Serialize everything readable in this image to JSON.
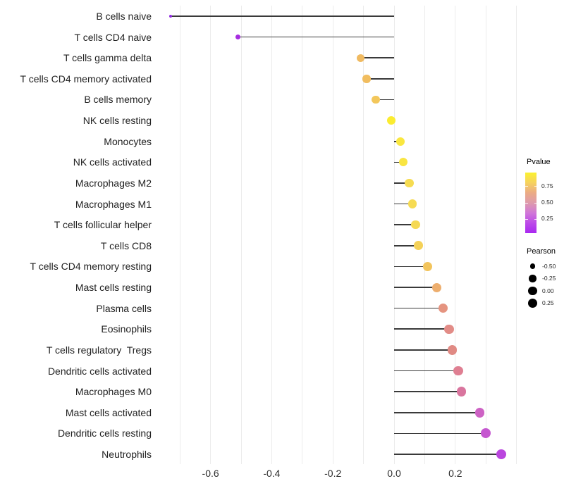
{
  "chart_data": {
    "type": "scatter",
    "subtype": "lollipop",
    "orientation": "horizontal",
    "title": "",
    "xlabel": "",
    "ylabel": "",
    "grid": true,
    "legend_position": "right",
    "x_axis": {
      "range": [
        -0.75,
        0.41
      ],
      "tick_values": [
        -0.6,
        -0.4,
        -0.2,
        0.0,
        0.2
      ],
      "tick_labels": [
        "-0.6",
        "-0.4",
        "-0.2",
        "0.0",
        "0.2"
      ],
      "gridline_values": [
        -0.7,
        -0.6,
        -0.5,
        -0.4,
        -0.3,
        -0.2,
        -0.1,
        0.0,
        0.1,
        0.2,
        0.3,
        0.4
      ]
    },
    "points": [
      {
        "category": "B cells naive",
        "pearson": -0.73,
        "color": "#8F29DF"
      },
      {
        "category": "T cells CD4 naive",
        "pearson": -0.51,
        "color": "#A62DE0"
      },
      {
        "category": "T cells gamma delta",
        "pearson": -0.11,
        "color": "#F0BA61"
      },
      {
        "category": "T cells CD4 memory activated",
        "pearson": -0.09,
        "color": "#F1BD5F"
      },
      {
        "category": "B cells memory",
        "pearson": -0.06,
        "color": "#F3C75B"
      },
      {
        "category": "NK cells resting",
        "pearson": -0.01,
        "color": "#FBEC30"
      },
      {
        "category": "Monocytes",
        "pearson": 0.02,
        "color": "#FAE73F"
      },
      {
        "category": "NK cells activated",
        "pearson": 0.03,
        "color": "#F9E542"
      },
      {
        "category": "Macrophages M2",
        "pearson": 0.05,
        "color": "#F6DC52"
      },
      {
        "category": "Macrophages M1",
        "pearson": 0.06,
        "color": "#F6DB53"
      },
      {
        "category": "T cells follicular helper",
        "pearson": 0.07,
        "color": "#F5D955"
      },
      {
        "category": "T cells CD8",
        "pearson": 0.08,
        "color": "#F4D158"
      },
      {
        "category": "T cells CD4 memory resting",
        "pearson": 0.11,
        "color": "#F2C45C"
      },
      {
        "category": "Mast cells resting",
        "pearson": 0.14,
        "color": "#EDAE6E"
      },
      {
        "category": "Plasma cells",
        "pearson": 0.16,
        "color": "#E59480"
      },
      {
        "category": "Eosinophils",
        "pearson": 0.18,
        "color": "#E28C87"
      },
      {
        "category": "T cells regulatory  Tregs",
        "pearson": 0.19,
        "color": "#E08A84"
      },
      {
        "category": "Dendritic cells activated",
        "pearson": 0.21,
        "color": "#DF7F92"
      },
      {
        "category": "Macrophages M0",
        "pearson": 0.22,
        "color": "#D9759E"
      },
      {
        "category": "Mast cells activated",
        "pearson": 0.28,
        "color": "#CD62C4"
      },
      {
        "category": "Dendritic cells resting",
        "pearson": 0.3,
        "color": "#C557D0"
      },
      {
        "category": "Neutrophils",
        "pearson": 0.35,
        "color": "#BA46DE"
      }
    ]
  },
  "legend": {
    "pvalue": {
      "title": "Pvalue",
      "tick_values": [
        0.75,
        0.5,
        0.25
      ],
      "tick_labels": [
        "0.75",
        "0.50",
        "0.25"
      ],
      "domain": [
        0.96,
        0.03
      ],
      "gradient_stops": [
        "#FBF12F",
        "#F6D25E",
        "#EBAB84",
        "#DE9BAC",
        "#D077D8",
        "#BC4BE8",
        "#A928F0"
      ]
    },
    "pearson": {
      "title": "Pearson",
      "items": [
        {
          "label": "-0.50",
          "value": -0.5
        },
        {
          "label": "-0.25",
          "value": -0.25
        },
        {
          "label": "0.00",
          "value": 0.0
        },
        {
          "label": "0.25",
          "value": 0.25
        }
      ]
    }
  },
  "style": {
    "background": "#ffffff",
    "stem_color": "#3a3a3a",
    "grid_color": "#ececec",
    "axis_text_color": "#2b2b2b",
    "label_text_color": "#212121",
    "legend_text_color": "#262626",
    "legend_dot_color": "#000000"
  }
}
